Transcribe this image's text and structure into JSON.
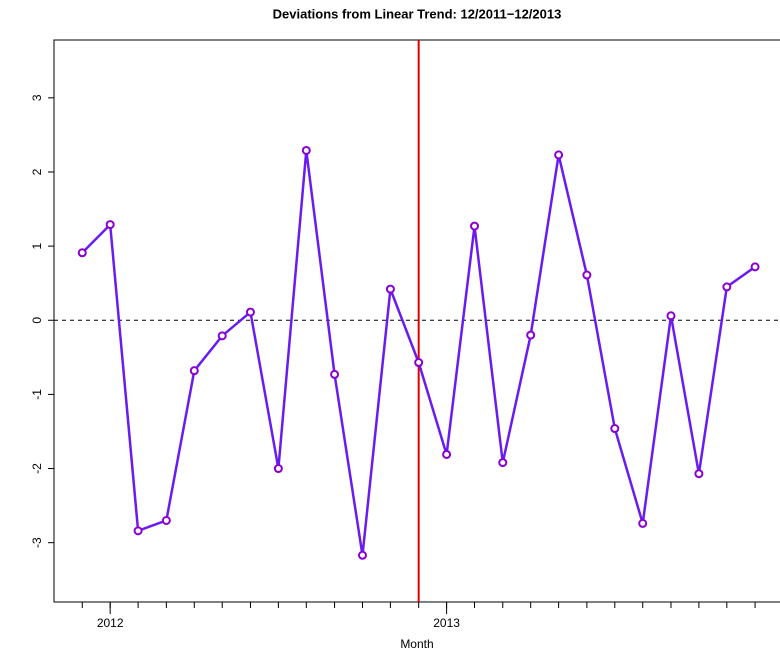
{
  "chart_data": {
    "type": "line",
    "title": "Deviations from Linear Trend: 12/2011−12/2013",
    "xlabel": "Month",
    "x": [
      2011.917,
      2012,
      2012.083,
      2012.167,
      2012.25,
      2012.333,
      2012.417,
      2012.5,
      2012.583,
      2012.667,
      2012.75,
      2012.833,
      2012.917,
      2013,
      2013.083,
      2013.167,
      2013.25,
      2013.333,
      2013.417,
      2013.5,
      2013.583,
      2013.667,
      2013.75,
      2013.833,
      2013.917
    ],
    "series": [
      {
        "color": "#6a1cf0",
        "marker_color": "#8a00d4",
        "values": [
          0.91,
          1.29,
          -2.84,
          -2.7,
          -0.68,
          -0.21,
          0.11,
          -2.0,
          2.29,
          -0.73,
          -3.17,
          0.42,
          -0.57,
          -1.81,
          1.27,
          -1.92,
          -0.2,
          2.23,
          0.61,
          -1.46,
          -2.74,
          0.06,
          -2.07,
          0.45,
          0.72
        ]
      }
    ],
    "xlim": [
      2011.833,
      2014.0
    ],
    "xticks": [
      2012,
      2013
    ],
    "ylim": [
      -3.8,
      3.78
    ],
    "yticks": [
      -3,
      -2,
      -1,
      0,
      1,
      2,
      3
    ],
    "vline": {
      "value": 2012.917,
      "color": "#e00000"
    },
    "hline": {
      "value": 0,
      "color": "#000000"
    }
  }
}
